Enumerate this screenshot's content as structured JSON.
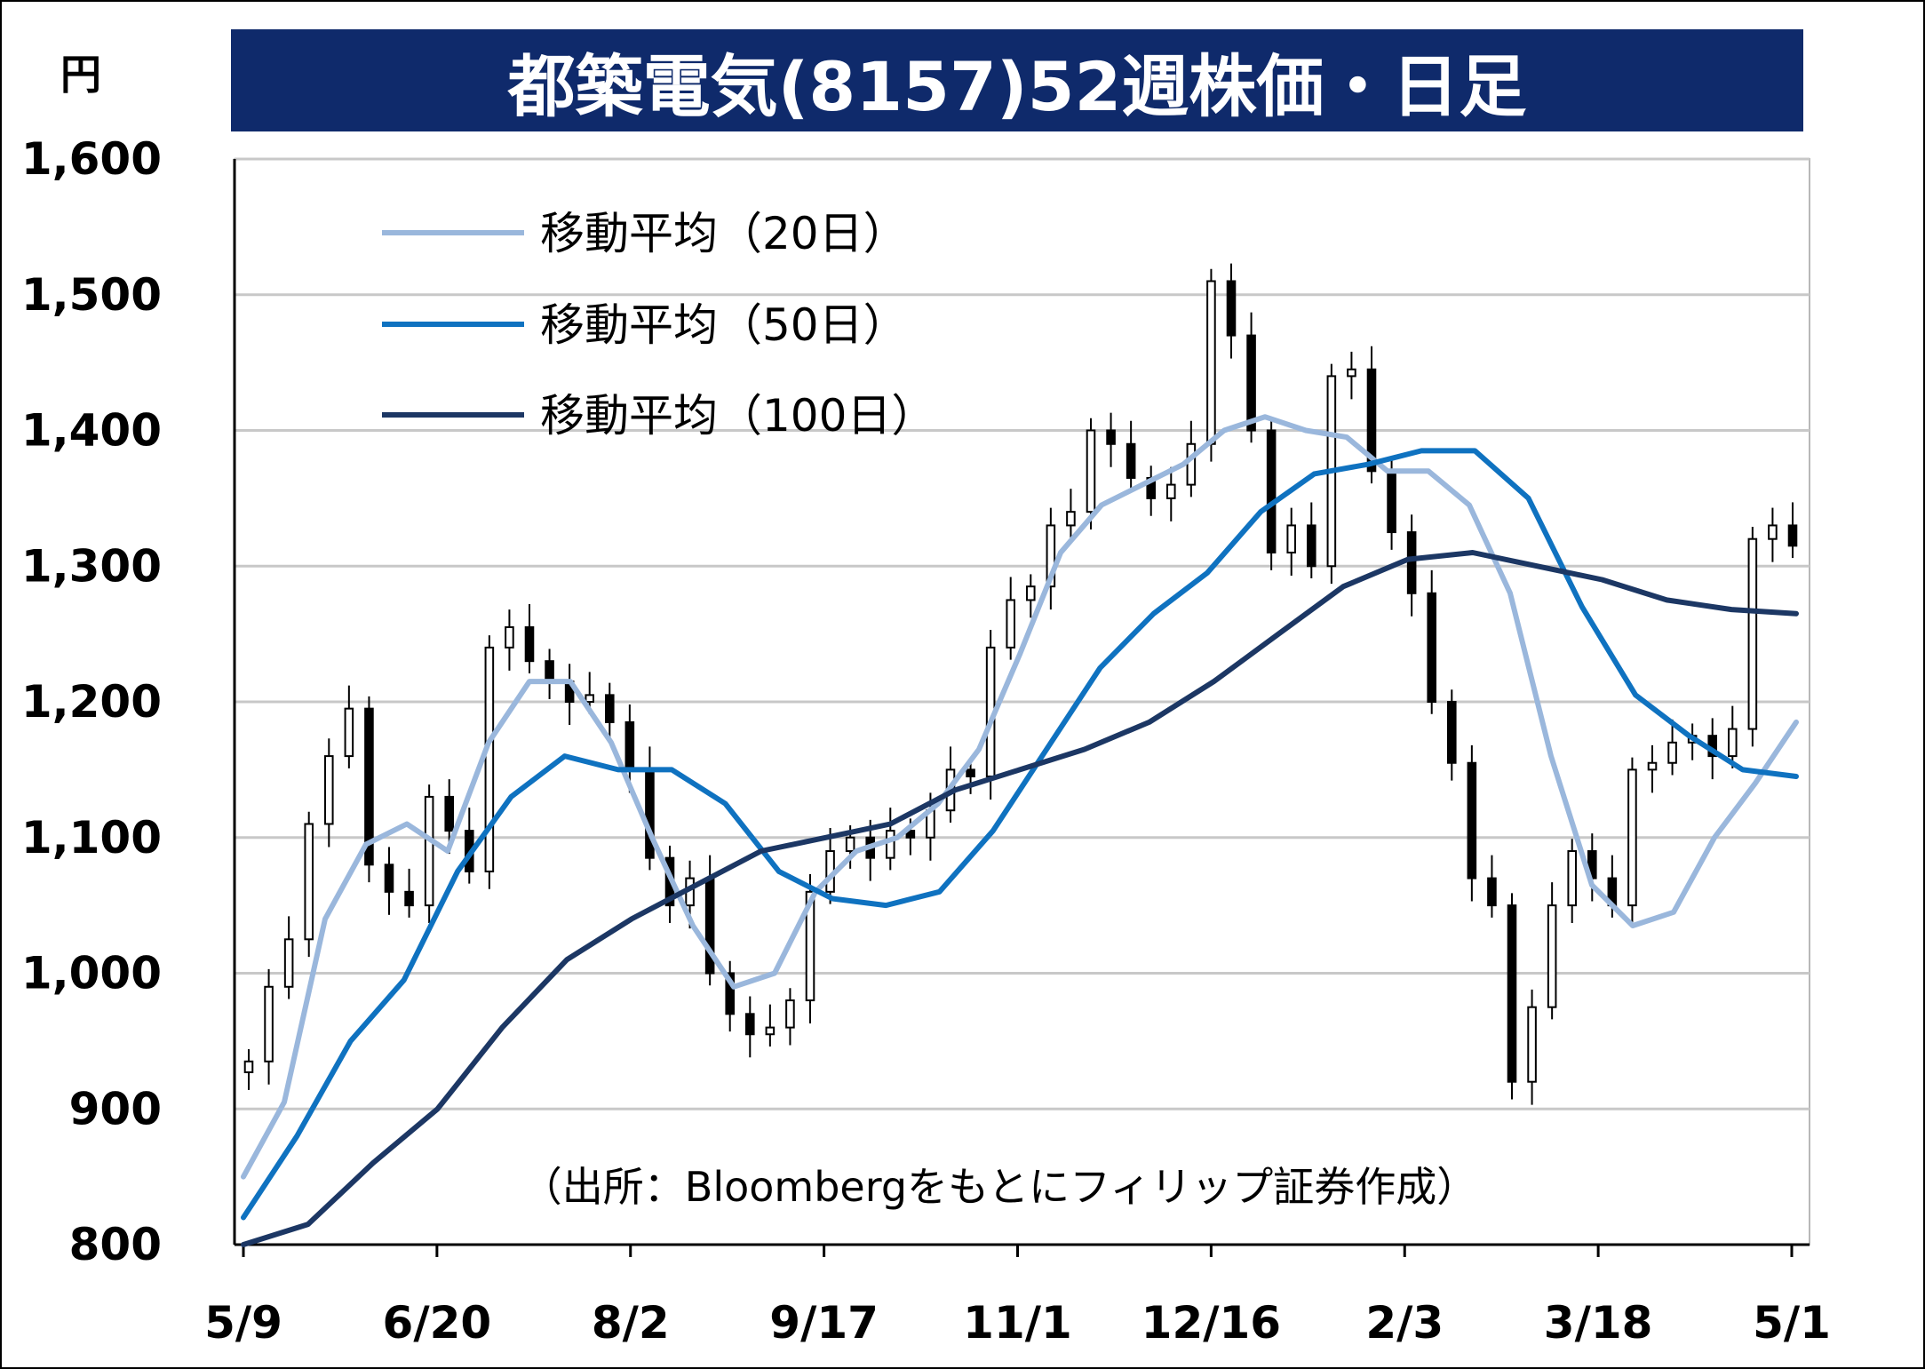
{
  "chart_data": {
    "type": "candlestick",
    "title": "都築電気(8157)52週株価・日足",
    "yunit": "円",
    "ylim": [
      800,
      1600
    ],
    "yticks": [
      800,
      900,
      1000,
      1100,
      1200,
      1300,
      1400,
      1500,
      1600
    ],
    "ytick_labels": [
      "800",
      "900",
      "1,000",
      "1,100",
      "1,200",
      "1,300",
      "1,400",
      "1,500",
      "1,600"
    ],
    "xtick_labels": [
      "5/9",
      "6/20",
      "8/2",
      "9/17",
      "11/1",
      "12/16",
      "2/3",
      "3/18",
      "5/1"
    ],
    "grid": true,
    "legend_position": "top-left",
    "source": "（出所：Bloombergをもとにフィリップ証券作成）",
    "candles_close": [
      935,
      990,
      1025,
      1110,
      1160,
      1195,
      1080,
      1060,
      1050,
      1130,
      1105,
      1075,
      1240,
      1255,
      1230,
      1215,
      1200,
      1205,
      1185,
      1150,
      1085,
      1050,
      1070,
      1000,
      970,
      955,
      960,
      980,
      1060,
      1090,
      1100,
      1085,
      1105,
      1100,
      1120,
      1150,
      1145,
      1240,
      1275,
      1285,
      1330,
      1340,
      1400,
      1390,
      1365,
      1350,
      1360,
      1390,
      1510,
      1470,
      1400,
      1310,
      1330,
      1300,
      1440,
      1445,
      1370,
      1325,
      1280,
      1200,
      1155,
      1070,
      1050,
      920,
      975,
      1050,
      1090,
      1070,
      1050,
      1150,
      1155,
      1170,
      1175,
      1160,
      1180,
      1320,
      1330,
      1315
    ],
    "series": [
      {
        "name": "移動平均（20日）",
        "color": "#9ab7dc",
        "values": [
          850,
          905,
          1040,
          1095,
          1110,
          1090,
          1170,
          1215,
          1215,
          1170,
          1100,
          1035,
          990,
          1000,
          1060,
          1090,
          1100,
          1125,
          1165,
          1235,
          1310,
          1345,
          1360,
          1375,
          1400,
          1410,
          1400,
          1395,
          1370,
          1370,
          1345,
          1280,
          1160,
          1065,
          1035,
          1045,
          1100,
          1140,
          1185
        ]
      },
      {
        "name": "移動平均（50日）",
        "color": "#0f72c0",
        "values": [
          820,
          880,
          950,
          995,
          1075,
          1130,
          1160,
          1150,
          1150,
          1125,
          1075,
          1055,
          1050,
          1060,
          1105,
          1165,
          1225,
          1265,
          1295,
          1340,
          1368,
          1375,
          1385,
          1385,
          1350,
          1270,
          1205,
          1175,
          1150,
          1145
        ]
      },
      {
        "name": "移動平均（100日）",
        "color": "#1c3764",
        "values": [
          800,
          815,
          860,
          900,
          960,
          1010,
          1040,
          1065,
          1090,
          1100,
          1110,
          1135,
          1150,
          1165,
          1185,
          1215,
          1250,
          1285,
          1305,
          1310,
          1300,
          1290,
          1275,
          1268,
          1265
        ]
      }
    ]
  }
}
